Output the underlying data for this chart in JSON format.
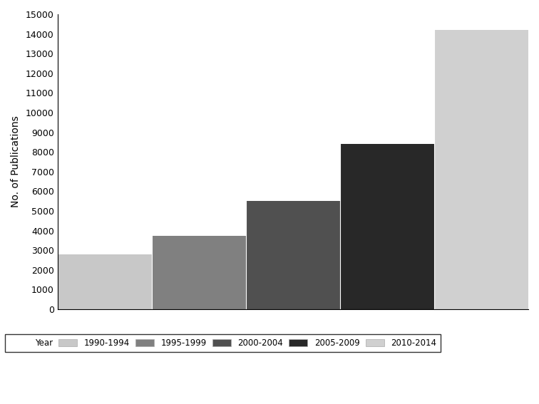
{
  "categories": [
    "1990-1994",
    "1995-1999",
    "2000-2004",
    "2005-2009",
    "2010-2014"
  ],
  "values": [
    2800,
    3750,
    5500,
    8400,
    14200
  ],
  "bar_colors": [
    "#c8c8c8",
    "#808080",
    "#505050",
    "#282828",
    "#d0d0d0"
  ],
  "ylabel": "No. of Publications",
  "ylim": [
    0,
    15000
  ],
  "yticks": [
    0,
    1000,
    2000,
    3000,
    4000,
    5000,
    6000,
    7000,
    8000,
    9000,
    10000,
    11000,
    12000,
    13000,
    14000,
    15000
  ],
  "legend_label": "Year",
  "title": "",
  "background_color": "#ffffff",
  "edge_color": "#000000"
}
